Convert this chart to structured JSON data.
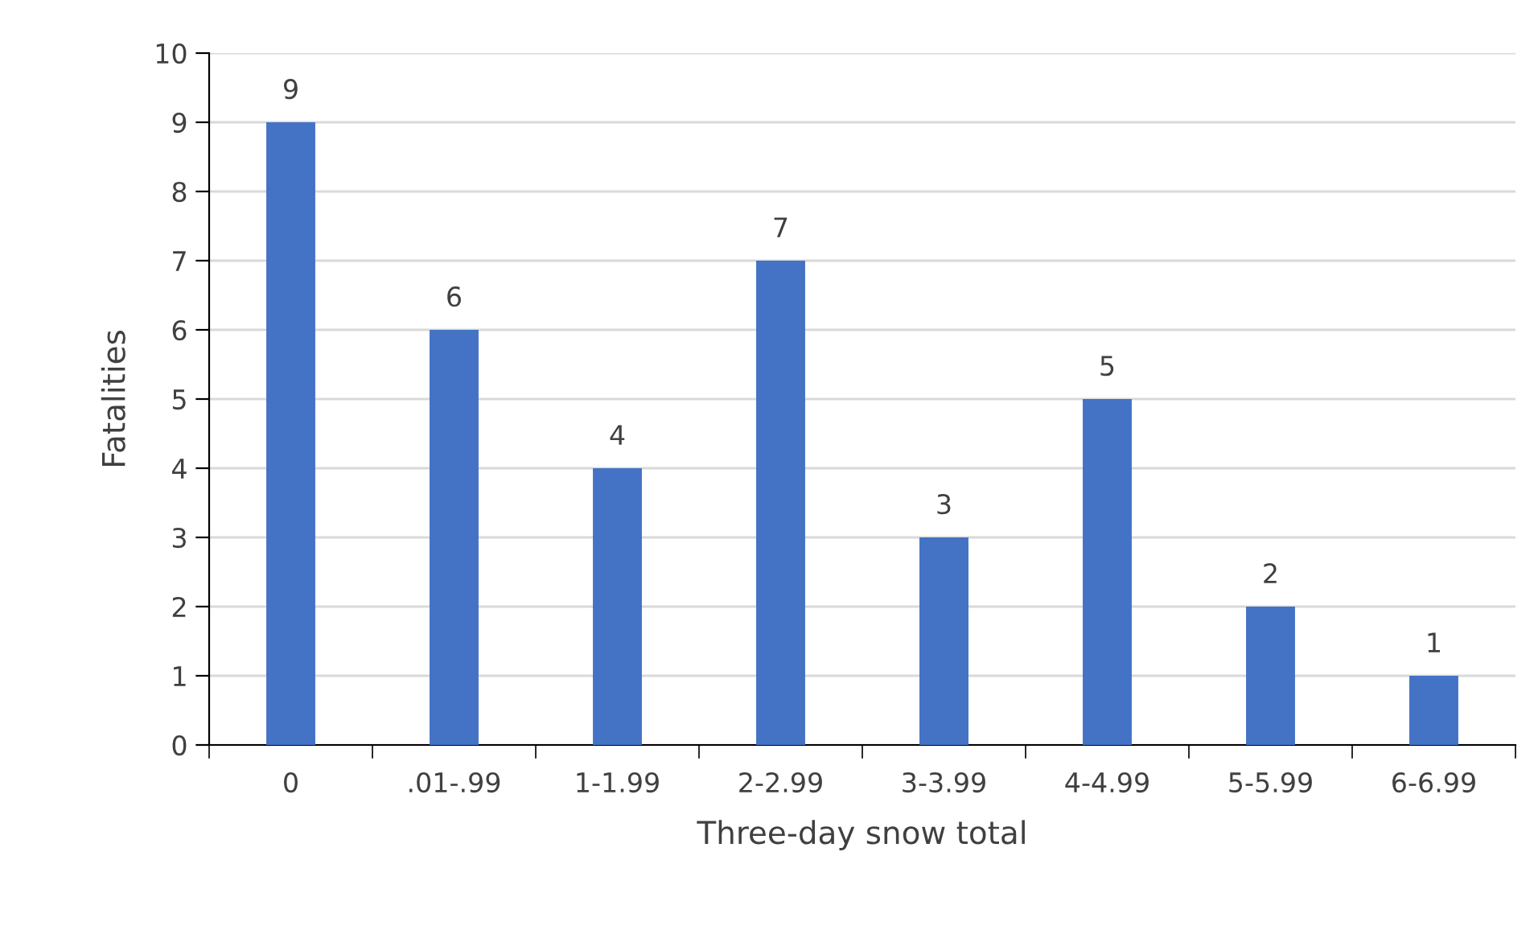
{
  "chart_data": {
    "type": "bar",
    "xlabel": "Three-day snow total",
    "ylabel": "Fatalities",
    "categories": [
      "0",
      ".01-.99",
      "1-1.99",
      "2-2.99",
      "3-3.99",
      "4-4.99",
      "5-5.99",
      "6-6.99"
    ],
    "values": [
      9,
      6,
      4,
      7,
      3,
      5,
      2,
      1
    ],
    "color": "#4472c4",
    "ylim": [
      0,
      10
    ],
    "yticks": [
      0,
      1,
      2,
      3,
      4,
      5,
      6,
      7,
      8,
      9,
      10
    ],
    "grid": "y",
    "data_labels": true,
    "legend": false
  }
}
